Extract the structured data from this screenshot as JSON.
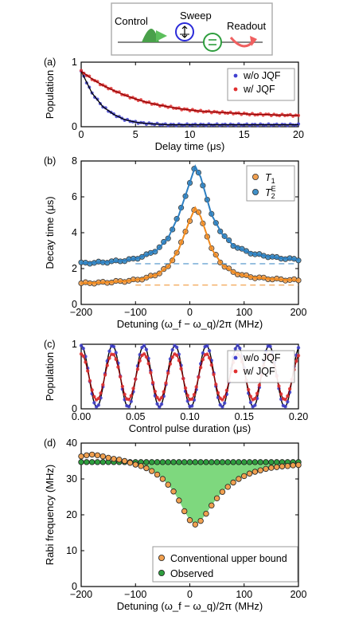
{
  "schematic": {
    "control_label": "Control",
    "sweep_label": "Sweep",
    "readout_label": "Readout",
    "colors": {
      "control": "#5cbf5c",
      "sweep": "#2b2bd9",
      "filter": "#2e9e3e",
      "readout": "#f06060"
    }
  },
  "chart_data": [
    {
      "id": "a",
      "panel_label": "(a)",
      "type": "scatter",
      "xlabel": "Delay time (μs)",
      "ylabel": "Population",
      "xlim": [
        0,
        20
      ],
      "ylim": [
        0,
        1
      ],
      "xticks": [
        0,
        5,
        10,
        15,
        20
      ],
      "yticks": [
        0,
        1
      ],
      "legend_position": "top-right",
      "series": [
        {
          "name": "w/o  JQF",
          "color": "#4040d0",
          "fit_color": "#000000",
          "x": [
            0,
            1,
            2,
            3,
            4,
            5,
            6,
            7,
            8,
            9,
            10,
            11,
            12,
            13,
            14,
            15,
            16,
            17,
            18,
            19,
            20
          ],
          "y": [
            0.86,
            0.52,
            0.31,
            0.19,
            0.11,
            0.07,
            0.05,
            0.04,
            0.03,
            0.03,
            0.03,
            0.03,
            0.03,
            0.03,
            0.03,
            0.03,
            0.03,
            0.03,
            0.03,
            0.03,
            0.03
          ]
        },
        {
          "name": "w/   JQF",
          "color": "#e03030",
          "fit_color": "#8b0000",
          "x": [
            0,
            1,
            2,
            3,
            4,
            5,
            6,
            7,
            8,
            9,
            10,
            11,
            12,
            13,
            14,
            15,
            16,
            17,
            18,
            19,
            20
          ],
          "y": [
            0.86,
            0.74,
            0.64,
            0.56,
            0.49,
            0.43,
            0.38,
            0.34,
            0.31,
            0.28,
            0.26,
            0.24,
            0.23,
            0.22,
            0.21,
            0.2,
            0.19,
            0.19,
            0.18,
            0.18,
            0.17
          ]
        }
      ]
    },
    {
      "id": "b",
      "panel_label": "(b)",
      "type": "scatter",
      "xlabel": "Detuning (ω_f − ω_q)/2π (MHz)",
      "ylabel": "Decay time (μs)",
      "xlim": [
        -200,
        200
      ],
      "ylim": [
        0,
        8
      ],
      "xticks": [
        -200,
        -100,
        0,
        100,
        200
      ],
      "yticks": [
        0,
        2,
        4,
        6,
        8
      ],
      "legend_position": "top-right",
      "series": [
        {
          "name": "T1",
          "color": "#f0a050",
          "fit_color": "#f08a1e",
          "x": [
            -200,
            -180,
            -160,
            -140,
            -120,
            -100,
            -80,
            -60,
            -40,
            -20,
            0,
            10,
            20,
            40,
            60,
            80,
            100,
            120,
            140,
            160,
            180,
            200
          ],
          "y": [
            1.18,
            1.2,
            1.22,
            1.26,
            1.3,
            1.36,
            1.48,
            1.68,
            2.1,
            3.1,
            4.7,
            5.4,
            4.9,
            3.1,
            2.2,
            1.8,
            1.6,
            1.5,
            1.45,
            1.4,
            1.37,
            1.35
          ],
          "baseline": 1.08
        },
        {
          "name": "T2E",
          "color": "#4090c8",
          "fit_color": "#2d7fc1",
          "x": [
            -200,
            -180,
            -160,
            -140,
            -120,
            -100,
            -80,
            -60,
            -40,
            -20,
            0,
            10,
            20,
            40,
            60,
            80,
            100,
            120,
            140,
            160,
            180,
            200
          ],
          "y": [
            2.3,
            2.32,
            2.35,
            2.4,
            2.45,
            2.55,
            2.75,
            3.05,
            3.7,
            5.0,
            6.8,
            7.7,
            7.1,
            5.0,
            3.9,
            3.3,
            3.0,
            2.8,
            2.7,
            2.6,
            2.55,
            2.5
          ],
          "baseline": 2.27
        }
      ]
    },
    {
      "id": "c",
      "panel_label": "(c)",
      "type": "scatter",
      "xlabel": "Control pulse duration (μs)",
      "ylabel": "Population",
      "xlim": [
        0,
        0.2
      ],
      "ylim": [
        0,
        1
      ],
      "xticks": [
        0.0,
        0.05,
        0.1,
        0.15,
        0.2
      ],
      "xtick_labels": [
        "0.00",
        "0.05",
        "0.10",
        "0.15",
        "0.20"
      ],
      "yticks": [
        0,
        1
      ],
      "legend_position": "top-right",
      "rabi_frequency_mhz": 34.7,
      "series": [
        {
          "name": "w/o  JQF",
          "color": "#4040d0",
          "fit_color": "#000000",
          "amplitude_min": 0.03,
          "amplitude_max": 0.98
        },
        {
          "name": "w/   JQF",
          "color": "#e03030",
          "fit_color": "#8b0000",
          "amplitude_min": 0.14,
          "amplitude_max": 0.85
        }
      ]
    },
    {
      "id": "d",
      "panel_label": "(d)",
      "type": "scatter",
      "xlabel": "Detuning (ω_f − ω_q)/2π (MHz)",
      "ylabel": "Rabi frequency (MHz)",
      "xlim": [
        -200,
        200
      ],
      "ylim": [
        0,
        40
      ],
      "xticks": [
        -200,
        -100,
        0,
        100,
        200
      ],
      "yticks": [
        0,
        10,
        20,
        30,
        40
      ],
      "legend_position": "bottom-right",
      "fill_color": "#7ed87e",
      "series": [
        {
          "name": "Conventional upper bound",
          "color": "#f0a050",
          "x": [
            -200,
            -190,
            -180,
            -170,
            -160,
            -150,
            -140,
            -130,
            -120,
            -110,
            -100,
            -90,
            -80,
            -70,
            -60,
            -50,
            -40,
            -30,
            -20,
            -10,
            0,
            10,
            20,
            30,
            40,
            50,
            60,
            70,
            80,
            90,
            100,
            110,
            120,
            130,
            140,
            150,
            160,
            170,
            180,
            190,
            200
          ],
          "y": [
            36.3,
            36.6,
            36.8,
            36.6,
            36.3,
            35.9,
            35.6,
            35.4,
            35.0,
            34.5,
            34.0,
            33.6,
            33.0,
            32.2,
            31.2,
            30.0,
            28.4,
            26.5,
            24.0,
            21.0,
            18.5,
            17.3,
            18.3,
            20.3,
            22.6,
            24.6,
            26.4,
            27.8,
            29.0,
            30.0,
            30.8,
            31.5,
            32.0,
            32.4,
            32.8,
            33.1,
            33.3,
            33.5,
            33.6,
            33.8,
            33.9
          ]
        },
        {
          "name": "Observed",
          "color": "#2e9e3e",
          "constant": 34.7
        }
      ]
    }
  ]
}
